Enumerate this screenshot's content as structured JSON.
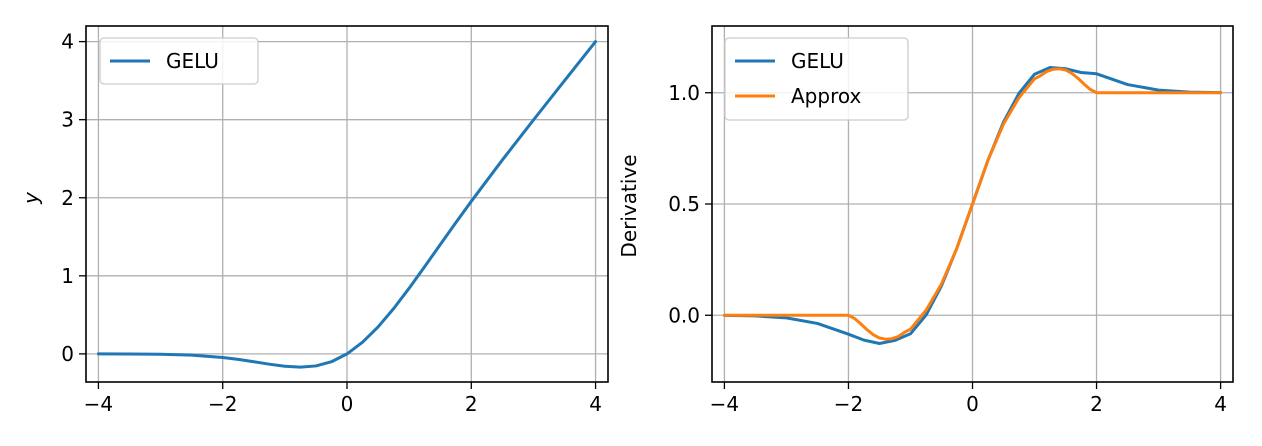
{
  "chart_data": [
    {
      "type": "line",
      "title": "",
      "xlabel": "",
      "ylabel": "y",
      "xlim": [
        -4.2,
        4.2
      ],
      "ylim": [
        -0.36,
        4.2
      ],
      "xticks": [
        -4,
        -2,
        0,
        2,
        4
      ],
      "xtick_labels": [
        "−4",
        "−2",
        "0",
        "2",
        "4"
      ],
      "yticks": [
        0,
        1,
        2,
        3,
        4
      ],
      "ytick_labels": [
        "0",
        "1",
        "2",
        "3",
        "4"
      ],
      "grid": true,
      "legend": "top-left",
      "series": [
        {
          "name": "GELU",
          "color": "#1f77b4",
          "x": [
            -4,
            -3.5,
            -3,
            -2.5,
            -2,
            -1.75,
            -1.5,
            -1.25,
            -1,
            -0.75,
            -0.5,
            -0.25,
            0,
            0.25,
            0.5,
            0.75,
            1,
            1.25,
            1.5,
            1.75,
            2,
            2.5,
            3,
            3.5,
            4
          ],
          "y": [
            -0.0001,
            -0.0008,
            -0.004,
            -0.0155,
            -0.0455,
            -0.0702,
            -0.1002,
            -0.132,
            -0.1587,
            -0.17,
            -0.1543,
            -0.1003,
            0,
            0.1497,
            0.3457,
            0.58,
            0.8413,
            1.118,
            1.3998,
            1.6798,
            1.9545,
            2.4845,
            2.996,
            3.4992,
            3.9999
          ]
        }
      ]
    },
    {
      "type": "line",
      "title": "",
      "xlabel": "",
      "ylabel": "Derivative",
      "xlim": [
        -4.2,
        4.2
      ],
      "ylim": [
        -0.3,
        1.3
      ],
      "xticks": [
        -4,
        -2,
        0,
        2,
        4
      ],
      "xtick_labels": [
        "−4",
        "−2",
        "0",
        "2",
        "4"
      ],
      "yticks": [
        0,
        0.5,
        1
      ],
      "ytick_labels": [
        "0.0",
        "0.5",
        "1.0"
      ],
      "grid": true,
      "legend": "top-left",
      "series": [
        {
          "name": "GELU",
          "color": "#1f77b4",
          "x": [
            -4,
            -3.5,
            -3,
            -2.5,
            -2,
            -1.75,
            -1.5,
            -1.25,
            -1,
            -0.75,
            -0.5,
            -0.25,
            0,
            0.25,
            0.5,
            0.75,
            1,
            1.25,
            1.5,
            1.75,
            2,
            2.5,
            3,
            3.5,
            4
          ],
          "y": [
            -0.0005,
            -0.003,
            -0.0119,
            -0.0367,
            -0.0852,
            -0.1118,
            -0.127,
            -0.1128,
            -0.0833,
            0.0002,
            0.1325,
            0.3033,
            0.5,
            0.697,
            0.868,
            0.9978,
            1.0833,
            1.1135,
            1.108,
            1.091,
            1.0852,
            1.0367,
            1.0119,
            1.003,
            1.0005
          ]
        },
        {
          "name": "Approx",
          "color": "#ff7f0e",
          "x": [
            -4,
            -3,
            -2,
            -1.9,
            -1.8,
            -1.7,
            -1.6,
            -1.5,
            -1.4,
            -1.3,
            -1.2,
            -1.1,
            -1.0,
            -0.75,
            -0.5,
            -0.25,
            0,
            0.25,
            0.5,
            0.75,
            1.0,
            1.1,
            1.2,
            1.3,
            1.4,
            1.5,
            1.6,
            1.7,
            1.8,
            1.9,
            2,
            3,
            4
          ],
          "y": [
            0,
            0,
            0,
            -0.0147,
            -0.0387,
            -0.0652,
            -0.0873,
            -0.1024,
            -0.1076,
            -0.1054,
            -0.0961,
            -0.0775,
            -0.0625,
            0.022,
            0.1406,
            0.3027,
            0.5,
            0.6973,
            0.8594,
            0.978,
            1.0625,
            1.0775,
            1.0961,
            1.1054,
            1.1076,
            1.1024,
            1.0873,
            1.0652,
            1.0387,
            1.0147,
            1.0,
            1.0,
            1.0
          ]
        }
      ]
    }
  ]
}
